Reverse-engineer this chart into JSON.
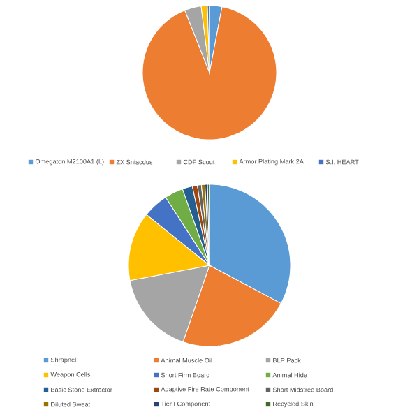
{
  "chart_data": [
    {
      "type": "pie",
      "categories": [
        "Omegaton M2100A1 (L)",
        "ZX Sniacdus",
        "CDF Scout",
        "Armor Plating Mark 2A",
        "S.I. HEART"
      ],
      "values": [
        3,
        91,
        4,
        1.5,
        0.5
      ],
      "colors": [
        "#5b9bd5",
        "#ed7d31",
        "#a5a5a5",
        "#ffc000",
        "#4472c4"
      ],
      "legend": "bottom"
    },
    {
      "type": "pie",
      "categories": [
        "Shrapnel",
        "Animal Muscle Oil",
        "BLP Pack",
        "Weapon Cells",
        "Short Firm Board",
        "Animal Hide",
        "Basic Stone Extractor",
        "Adaptive Fire Rate Component",
        "Short Midstree Board",
        "Diluted Sweat",
        "Tier I Component",
        "Recycled Skin"
      ],
      "values": [
        32.8,
        22.5,
        16.7,
        13.8,
        5.1,
        3.7,
        2,
        1,
        0.8,
        0.7,
        0.5,
        0.4
      ],
      "colors": [
        "#5b9bd5",
        "#ed7d31",
        "#a5a5a5",
        "#ffc000",
        "#4472c4",
        "#70ad47",
        "#255e91",
        "#9e480e",
        "#636363",
        "#997300",
        "#264478",
        "#43682b"
      ],
      "legend": "bottom"
    }
  ]
}
